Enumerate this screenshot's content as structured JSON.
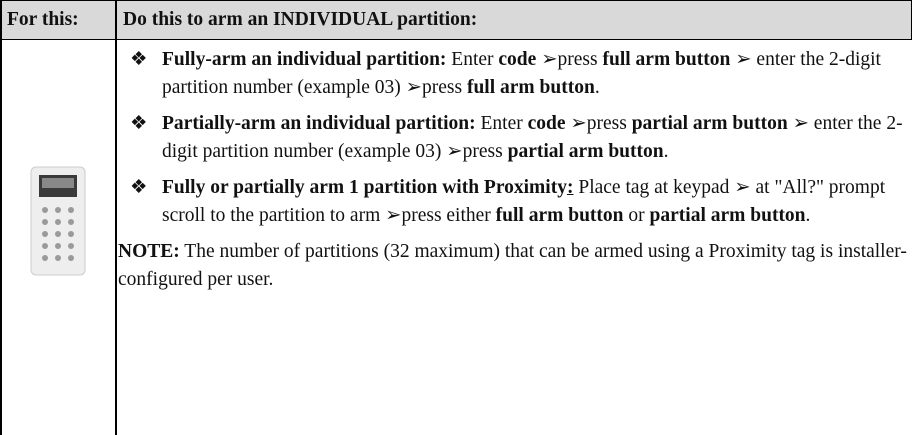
{
  "table": {
    "header": [
      "For this:",
      "Do this to arm an INDIVIDUAL partition:"
    ],
    "bullet": "❖",
    "items": [
      {
        "runs": [
          {
            "text": "Fully-arm an individual partition:",
            "bold": true
          },
          {
            "text": " Enter "
          },
          {
            "text": "code",
            "bold": true
          },
          {
            "text": " ➢press "
          },
          {
            "text": "full arm button",
            "bold": true
          },
          {
            "text": " ➢ enter the 2-digit partition number (example 03) ➢press "
          },
          {
            "text": "full arm button",
            "bold": true
          },
          {
            "text": "."
          }
        ]
      },
      {
        "runs": [
          {
            "text": "Partially-arm an individual partition:",
            "bold": true
          },
          {
            "text": " Enter "
          },
          {
            "text": "code",
            "bold": true
          },
          {
            "text": " ➢press "
          },
          {
            "text": "partial arm button",
            "bold": true
          },
          {
            "text": " ➢ enter the 2-digit partition number (example 03) ➢press "
          },
          {
            "text": "partial arm button",
            "bold": true
          },
          {
            "text": "."
          }
        ]
      },
      {
        "runs": [
          {
            "text": "Fully or partially arm 1 partition with Proximity",
            "bold": true
          },
          {
            "text": ":",
            "bold": true,
            "underline": true
          },
          {
            "text": " Place tag at keypad ➢ at \"All?\" prompt scroll to the partition to arm ➢press either "
          },
          {
            "text": "full arm button",
            "bold": true
          },
          {
            "text": " or "
          },
          {
            "text": "partial arm button",
            "bold": true
          },
          {
            "text": "."
          }
        ]
      }
    ],
    "note": {
      "runs": [
        {
          "text": "NOTE:",
          "bold": true
        },
        {
          "text": " The number of partitions (32 maximum) that can be armed using a Proximity tag is installer-configured per user."
        }
      ]
    }
  }
}
